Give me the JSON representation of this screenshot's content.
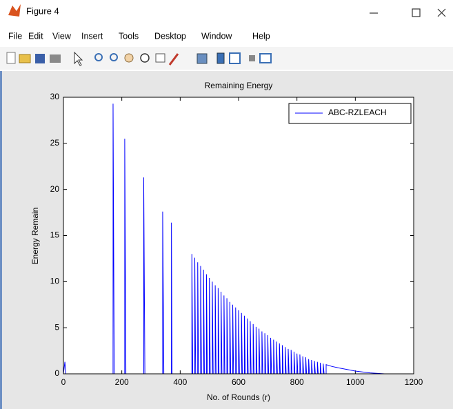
{
  "window": {
    "title": "Figure 4",
    "menu": [
      "File",
      "Edit",
      "View",
      "Insert",
      "Tools",
      "Desktop",
      "Window",
      "Help"
    ]
  },
  "chart_data": {
    "type": "line",
    "title": "Remaining Energy",
    "xlabel": "No. of Rounds (r)",
    "ylabel": "Energy Remain",
    "x": [
      0,
      5,
      8,
      170,
      170,
      172,
      174,
      210,
      210,
      212,
      214,
      275,
      275,
      277,
      279,
      340,
      340,
      342,
      344,
      370,
      370,
      372,
      440,
      440,
      443,
      450,
      450,
      453,
      460,
      460,
      463,
      470,
      470,
      473,
      480,
      480,
      483,
      490,
      490,
      493,
      500,
      500,
      503,
      510,
      510,
      513,
      520,
      520,
      523,
      530,
      530,
      533,
      540,
      540,
      543,
      550,
      550,
      553,
      560,
      560,
      563,
      570,
      570,
      573,
      580,
      580,
      583,
      590,
      590,
      593,
      600,
      600,
      603,
      610,
      610,
      613,
      620,
      620,
      623,
      630,
      630,
      633,
      640,
      640,
      643,
      650,
      650,
      653,
      660,
      660,
      663,
      670,
      670,
      673,
      680,
      680,
      683,
      690,
      690,
      693,
      700,
      700,
      703,
      710,
      710,
      713,
      720,
      720,
      723,
      730,
      730,
      733,
      740,
      740,
      743,
      750,
      750,
      753,
      760,
      760,
      763,
      770,
      770,
      773,
      780,
      780,
      783,
      790,
      790,
      793,
      800,
      800,
      803,
      810,
      810,
      813,
      820,
      820,
      823,
      830,
      830,
      833,
      840,
      840,
      843,
      850,
      850,
      853,
      860,
      860,
      863,
      870,
      870,
      873,
      880,
      880,
      883,
      890,
      890,
      893,
      900,
      900,
      920,
      950,
      1000,
      1050,
      1100,
      1150
    ],
    "series": [
      {
        "name": "ABC-RZLEACH",
        "color": "#0000ff",
        "values": [
          0,
          1.3,
          0,
          0,
          29.3,
          14.6,
          0,
          0,
          25.5,
          12.7,
          0,
          0,
          21.3,
          10.6,
          0,
          0,
          17.6,
          8.8,
          0,
          0,
          16.4,
          0,
          0,
          13,
          0,
          0,
          12.6,
          0,
          0,
          12.1,
          0,
          0,
          11.7,
          0,
          0,
          11.3,
          0,
          0,
          10.8,
          0,
          0,
          10.4,
          0,
          0,
          10,
          0,
          0,
          9.6,
          0,
          0,
          9.3,
          0,
          0,
          8.9,
          0,
          0,
          8.5,
          0,
          0,
          8.2,
          0,
          0,
          7.8,
          0,
          0,
          7.5,
          0,
          0,
          7.2,
          0,
          0,
          6.9,
          0,
          0,
          6.6,
          0,
          0,
          6.3,
          0,
          0,
          6,
          0,
          0,
          5.7,
          0,
          0,
          5.4,
          0,
          0,
          5.1,
          0,
          0,
          4.9,
          0,
          0,
          4.6,
          0,
          0,
          4.4,
          0,
          0,
          4.2,
          0,
          0,
          3.9,
          0,
          0,
          3.7,
          0,
          0,
          3.5,
          0,
          0,
          3.3,
          0,
          0,
          3.1,
          0,
          0,
          2.9,
          0,
          0,
          2.7,
          0,
          0,
          2.6,
          0,
          0,
          2.4,
          0,
          0,
          2.2,
          0,
          0,
          2.1,
          0,
          0,
          1.9,
          0,
          0,
          1.8,
          0,
          0,
          1.6,
          0,
          0,
          1.5,
          0,
          0,
          1.4,
          0,
          0,
          1.3,
          0,
          0,
          1.2,
          0,
          0,
          1.1,
          0,
          0,
          1,
          0.8,
          0.6,
          0.3,
          0.1,
          0,
          0
        ]
      }
    ],
    "xlim": [
      0,
      1200
    ],
    "xticks": [
      0,
      200,
      400,
      600,
      800,
      1000,
      1200
    ],
    "ylim": [
      0,
      30
    ],
    "yticks": [
      0,
      5,
      10,
      15,
      20,
      25,
      30
    ],
    "grid": false,
    "legend": "northeast"
  }
}
